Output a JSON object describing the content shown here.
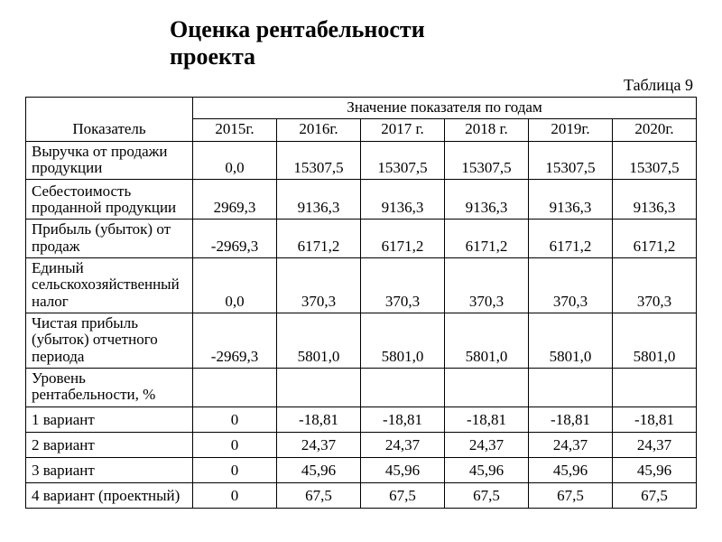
{
  "title_line1": "Оценка рентабельности",
  "title_line2": "проекта",
  "caption": "Таблица 9",
  "header": {
    "indicator": "Показатель",
    "years_label": "Значение показателя по годам",
    "years": [
      "2015г.",
      "2016г.",
      "2017 г.",
      "2018 г.",
      "2019г.",
      "2020г."
    ]
  },
  "rows": [
    {
      "label": "Выручка от продажи продукции",
      "values": [
        "0,0",
        "15307,5",
        "15307,5",
        "15307,5",
        "15307,5",
        "15307,5"
      ],
      "h": "mid"
    },
    {
      "label": "Себестоимость проданной продукции",
      "values": [
        "2969,3",
        "9136,3",
        "9136,3",
        "9136,3",
        "9136,3",
        "9136,3"
      ],
      "h": "tall"
    },
    {
      "label": "Прибыль (убыток) от продаж",
      "values": [
        "-2969,3",
        "6171,2",
        "6171,2",
        "6171,2",
        "6171,2",
        "6171,2"
      ],
      "h": "mid"
    },
    {
      "label": "Единый сельскохозяйственный налог",
      "values": [
        "0,0",
        "370,3",
        "370,3",
        "370,3",
        "370,3",
        "370,3"
      ],
      "h": "tall"
    },
    {
      "label": "Чистая прибыль (убыток) отчетного периода",
      "values": [
        "-2969,3",
        "5801,0",
        "5801,0",
        "5801,0",
        "5801,0",
        "5801,0"
      ],
      "h": "tall"
    },
    {
      "label": "Уровень рентабельности, %",
      "values": [
        "",
        "",
        "",
        "",
        "",
        ""
      ],
      "h": "mid"
    },
    {
      "label": "1 вариант",
      "values": [
        "0",
        "-18,81",
        "-18,81",
        "-18,81",
        "-18,81",
        "-18,81"
      ],
      "h": "short"
    },
    {
      "label": "2 вариант",
      "values": [
        "0",
        "24,37",
        "24,37",
        "24,37",
        "24,37",
        "24,37"
      ],
      "h": "short"
    },
    {
      "label": "3 вариант",
      "values": [
        "0",
        "45,96",
        "45,96",
        "45,96",
        "45,96",
        "45,96"
      ],
      "h": "short"
    },
    {
      "label": "4 вариант (проектный)",
      "values": [
        "0",
        "67,5",
        "67,5",
        "67,5",
        "67,5",
        "67,5"
      ],
      "h": "short"
    }
  ],
  "style": {
    "font_family": "Times New Roman",
    "title_fontsize_pt": 20,
    "body_fontsize_pt": 13,
    "border_color": "#000000",
    "background_color": "#ffffff",
    "text_color": "#000000"
  }
}
